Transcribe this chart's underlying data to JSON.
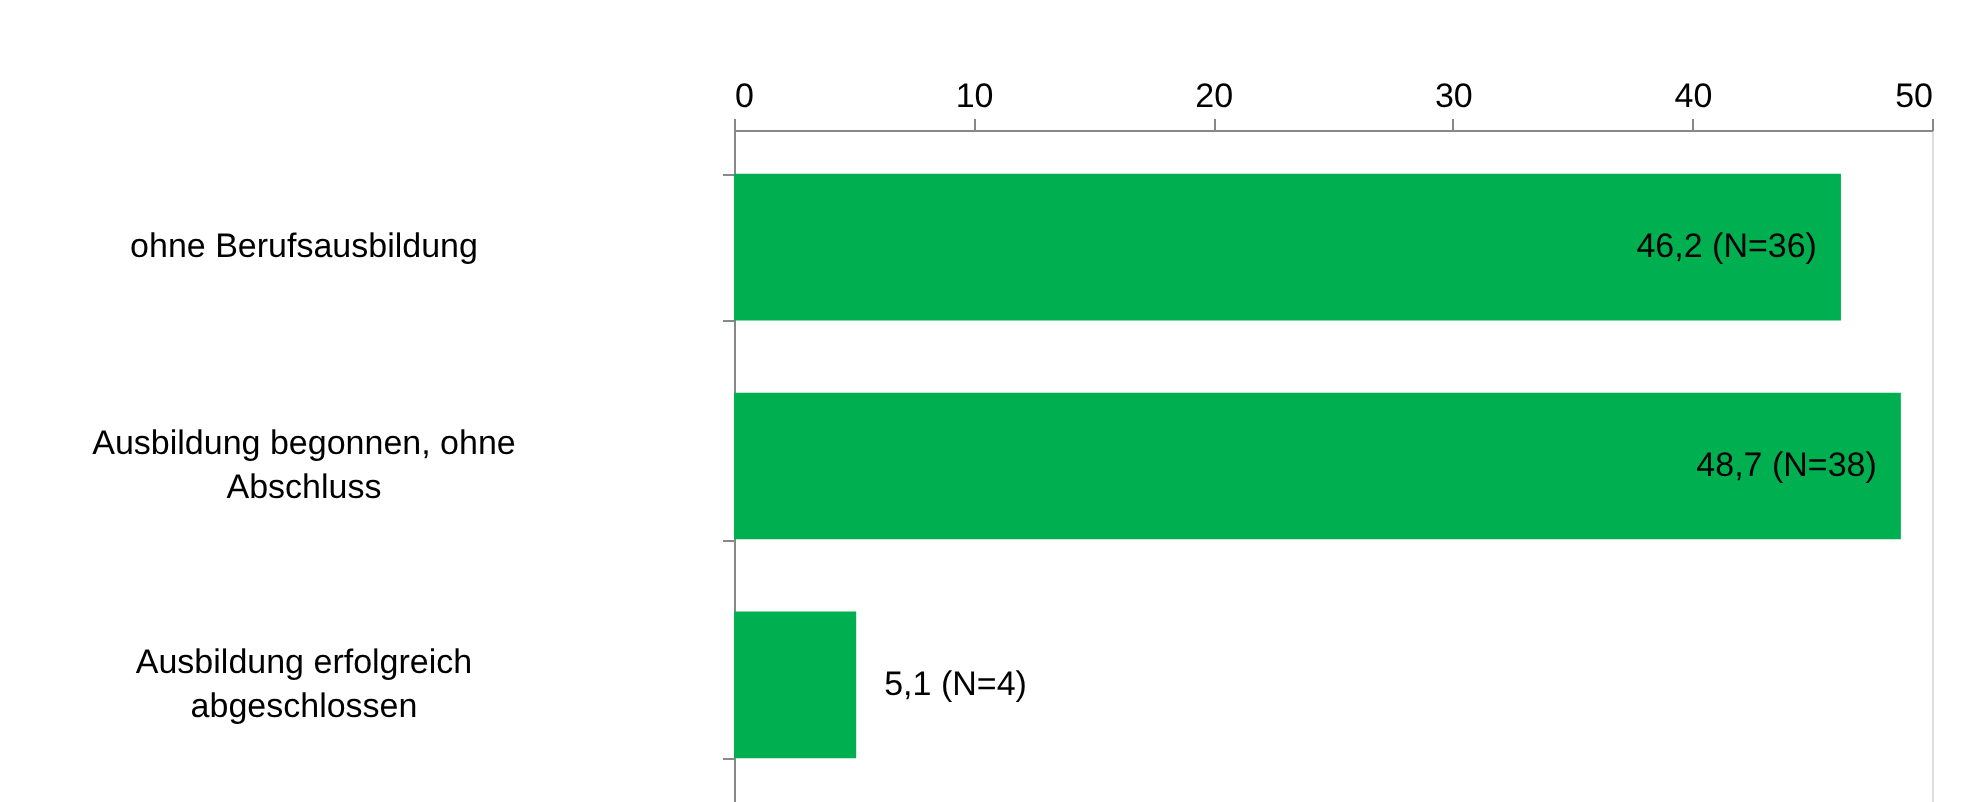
{
  "chart_data": {
    "type": "bar",
    "orientation": "horizontal",
    "categories": [
      "ohne Berufsausbildung",
      "Ausbildung begonnen, ohne Abschluss",
      "Ausbildung erfolgreich abgeschlossen"
    ],
    "values": [
      46.2,
      48.7,
      5.1
    ],
    "value_labels": [
      "46,2 (N=36)",
      "48,7 (N=38)",
      "5,1 (N=4)"
    ],
    "color": "#00b050",
    "xlim": [
      0,
      50
    ],
    "xticks": [
      0,
      10,
      20,
      30,
      40,
      50
    ],
    "grid": false
  }
}
